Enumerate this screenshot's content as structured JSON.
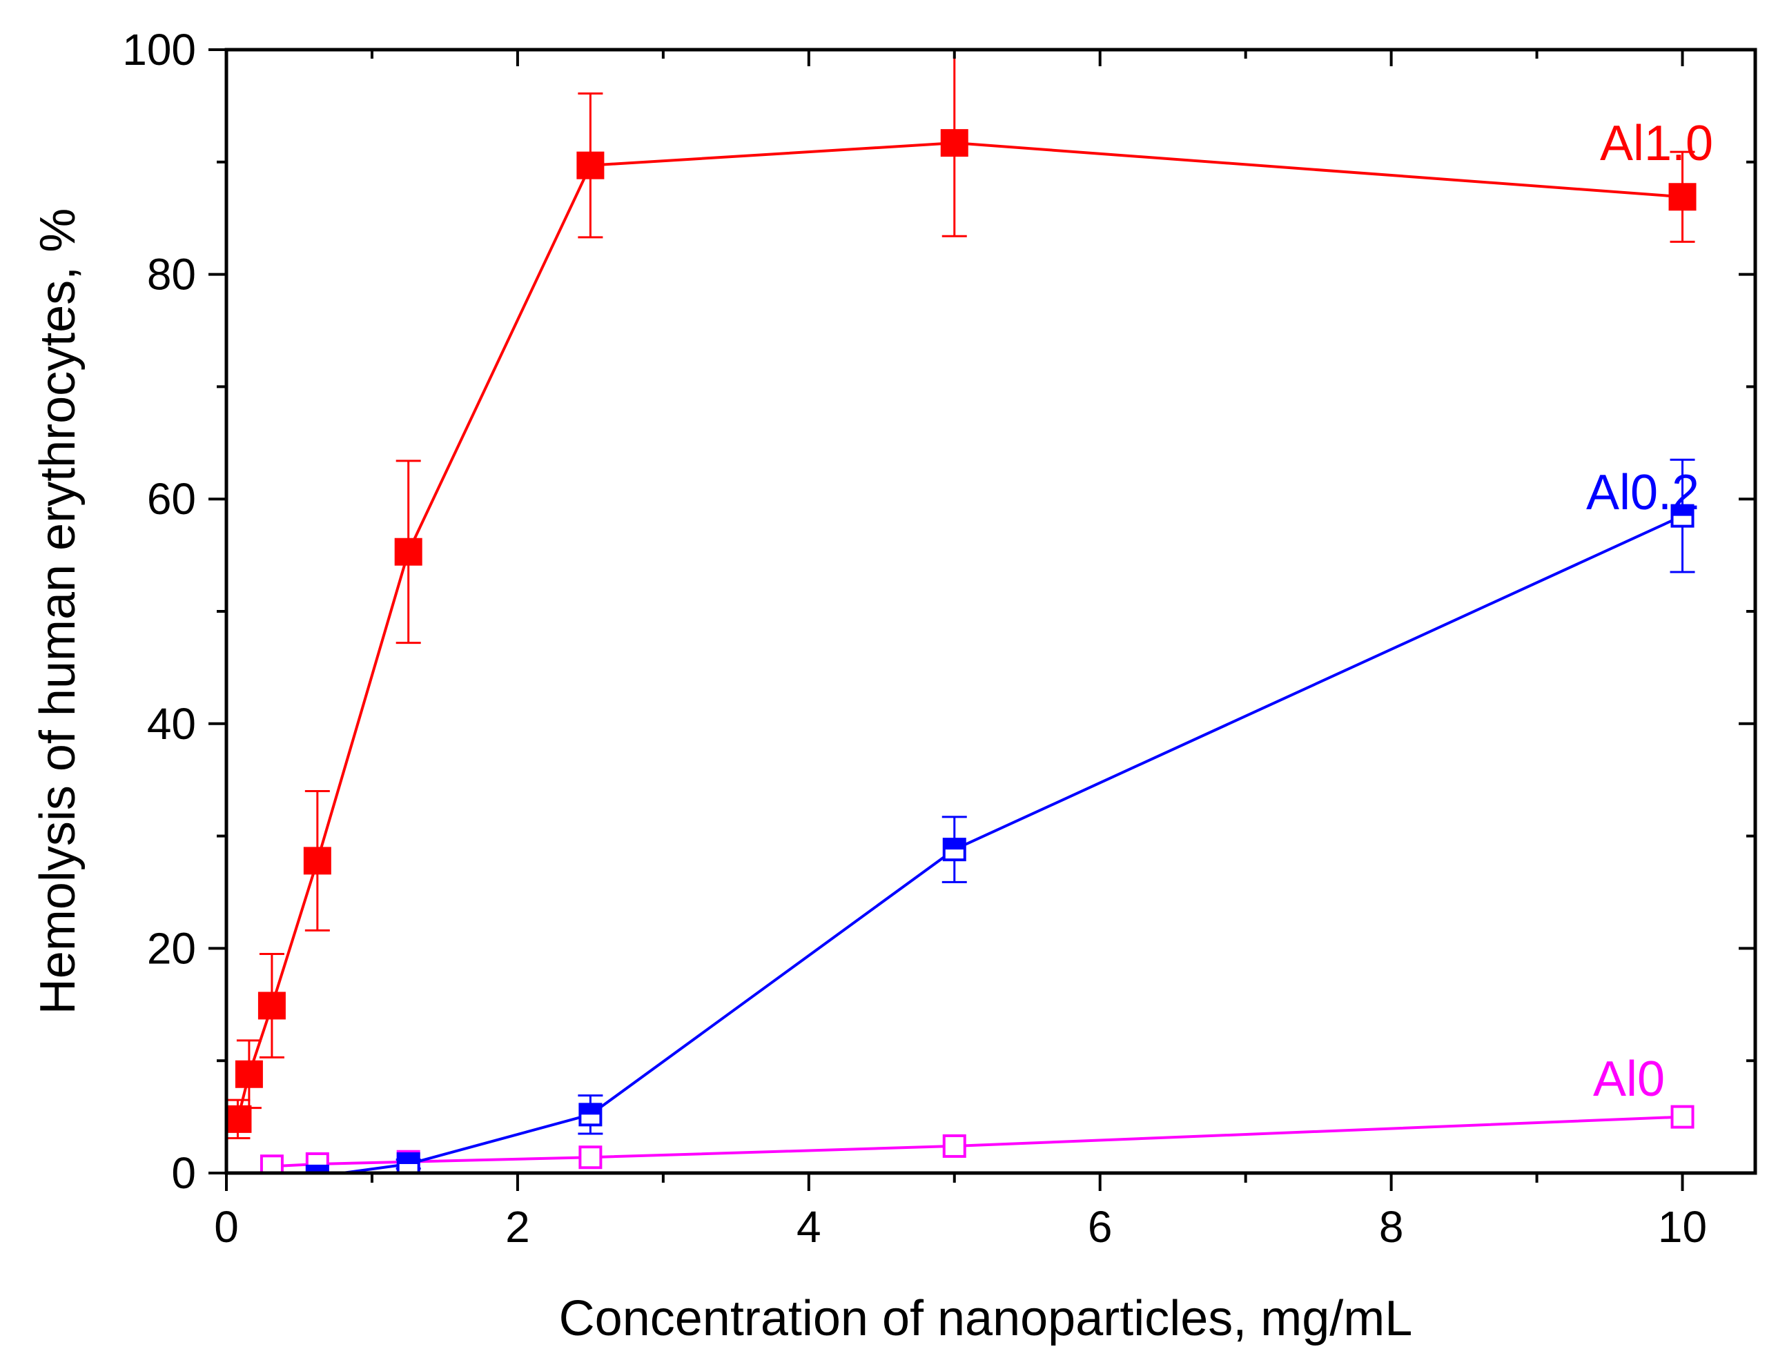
{
  "chart_data": {
    "type": "line",
    "xlabel": "Concentration of nanoparticles, mg/mL",
    "ylabel": "Hemolysis of human erythrocytes, %",
    "xlim": [
      0,
      10.5
    ],
    "ylim": [
      0,
      100
    ],
    "xticks": [
      0,
      2,
      4,
      6,
      8,
      10
    ],
    "xtick_labels": [
      "0",
      "2",
      "4",
      "6",
      "8",
      "10"
    ],
    "yticks": [
      0,
      20,
      40,
      60,
      80,
      100
    ],
    "ytick_labels": [
      "0",
      "20",
      "40",
      "60",
      "80",
      "100"
    ],
    "grid": false,
    "series": [
      {
        "name": "Al1.0",
        "color": "#ff0000",
        "marker": "filled-square",
        "x": [
          0.078,
          0.156,
          0.3125,
          0.625,
          1.25,
          2.5,
          5,
          10
        ],
        "y": [
          4.8,
          8.8,
          14.9,
          27.8,
          55.3,
          89.7,
          91.7,
          86.9
        ],
        "yerr": [
          1.7,
          3.0,
          4.6,
          6.2,
          8.1,
          6.4,
          8.3,
          4.0
        ]
      },
      {
        "name": "Al0.2",
        "color": "#0000ff",
        "marker": "half-filled-square",
        "x": [
          0.625,
          1.25,
          2.5,
          5,
          10
        ],
        "y": [
          -0.3,
          0.8,
          5.2,
          28.8,
          58.5
        ],
        "yerr": [
          0.3,
          0.4,
          1.7,
          2.9,
          5.0
        ]
      },
      {
        "name": "Al0",
        "color": "#ff00ff",
        "marker": "open-square",
        "x": [
          0.3125,
          0.625,
          1.25,
          2.5,
          5,
          10
        ],
        "y": [
          0.6,
          0.8,
          1.0,
          1.4,
          2.4,
          5.0
        ],
        "yerr": [
          0.3,
          0.3,
          0.3,
          0.3,
          0.3,
          0.3
        ]
      }
    ]
  }
}
